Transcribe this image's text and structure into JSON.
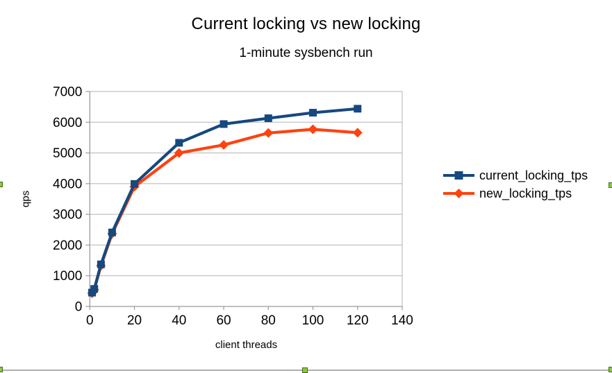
{
  "chart_data": {
    "type": "line",
    "title": "Current locking vs new locking",
    "subtitle": "1-minute sysbench run",
    "xlabel": "client threads",
    "ylabel": "qps",
    "xlim": [
      0,
      140
    ],
    "ylim": [
      0,
      7000
    ],
    "x_ticks": [
      0,
      20,
      40,
      60,
      80,
      100,
      120,
      140
    ],
    "y_ticks": [
      0,
      1000,
      2000,
      3000,
      4000,
      5000,
      6000,
      7000
    ],
    "grid": "horizontal",
    "legend_position": "right",
    "x": [
      1,
      2,
      5,
      10,
      20,
      40,
      60,
      80,
      100,
      120
    ],
    "series": [
      {
        "name": "current_locking_tps",
        "marker": "square",
        "color": "#15497f",
        "values": [
          450,
          570,
          1370,
          2410,
          3990,
          5330,
          5940,
          6130,
          6310,
          6440
        ]
      },
      {
        "name": "new_locking_tps",
        "marker": "diamond",
        "color": "#ff420e",
        "values": [
          430,
          545,
          1330,
          2370,
          3900,
          5000,
          5260,
          5650,
          5770,
          5660
        ]
      }
    ]
  },
  "colors": {
    "text": "#000000",
    "grid": "#b3b3b3",
    "axis": "#9a9a9a",
    "handle_fill": "#8dc63f",
    "handle_border": "#3f6b15",
    "object_border": "#aeaeae"
  }
}
